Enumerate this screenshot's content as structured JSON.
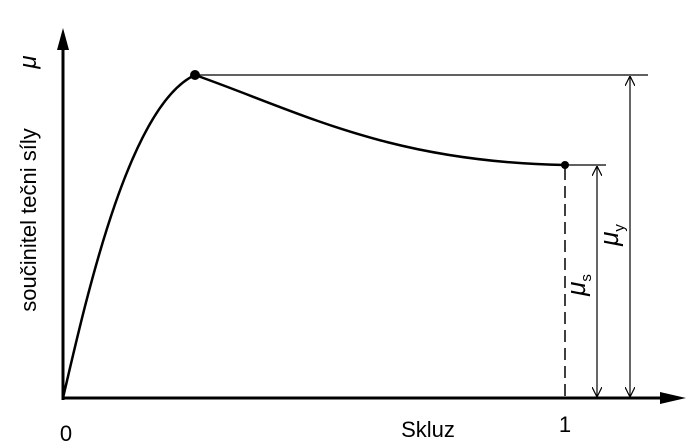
{
  "axes": {
    "y_label": "součinitel tečni síly",
    "y_symbol": "μ",
    "x_label": "Skluz",
    "x_origin": "0",
    "x_one": "1"
  },
  "annotations": [
    {
      "symbol": "μ",
      "subscript": "s"
    },
    {
      "symbol": "μ",
      "subscript": "y"
    }
  ]
}
